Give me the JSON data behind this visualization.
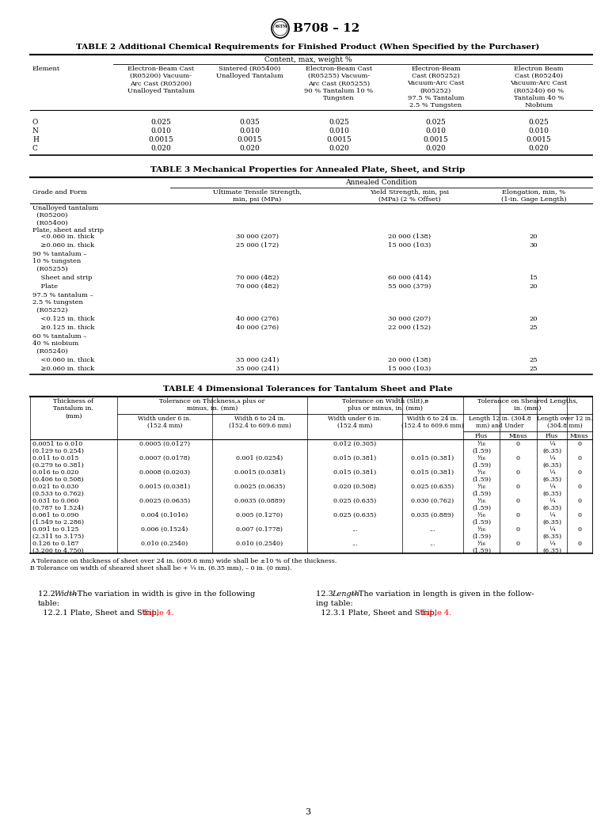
{
  "title": "B708 – 12",
  "bg_color": "#ffffff",
  "table2_title": "TABLE 2 Additional Chemical Requirements for Finished Product (When Specified by the Purchaser)",
  "table3_title": "TABLE 3 Mechanical Properties for Annealed Plate, Sheet, and Strip",
  "table4_title": "TABLE 4 Dimensional Tolerances for Tantalum Sheet and Plate",
  "table2_content_header": "Content, max, weight %",
  "table2_col_headers": [
    "Element",
    "Electron-Beam Cast\n(R05200) Vacuum-\nArc Cast (R05200)\nUnalloyed Tantalum",
    "Sintered (R05400)\nUnalloyed Tantalum",
    "Electron-Beam Cast\n(R05255) Vacuum-\nArc Cast (R05255)\n90 % Tantalum 10 %\nTungsten",
    "Electron-Beam\nCast (R05252)\nVacuum-Arc Cast\n(R05252)\n97.5 % Tantalum\n2.5 % Tungsten",
    "Electron Beam\nCast (R05240)\nVacuum-Arc Cast\n(R05240) 60 %\nTantalum 40 %\nNiobium"
  ],
  "table2_rows": [
    [
      "O",
      "0.025",
      "0.035",
      "0.025",
      "0.025",
      "0.025"
    ],
    [
      "N",
      "0.010",
      "0.010",
      "0.010",
      "0.010",
      "0.010"
    ],
    [
      "H",
      "0.0015",
      "0.0015",
      "0.0015",
      "0.0015",
      "0.0015"
    ],
    [
      "C",
      "0.020",
      "0.020",
      "0.020",
      "0.020",
      "0.020"
    ]
  ],
  "table3_annealed_header": "Annealed Condition",
  "table3_col_headers": [
    "Grade and Form",
    "Ultimate Tensile Strength,\nmin, psi (MPa)",
    "Yield Strength, min, psi\n(MPa) (2 % Offset)",
    "Elongation, min, %\n(1-in. Gage Length)"
  ],
  "table3_rows": [
    [
      "Unalloyed tantalum\n  (R05200)\n  (R05400)\nPlate, sheet and strip",
      "",
      "",
      ""
    ],
    [
      "    <0.060 in. thick",
      "30 000 (207)",
      "20 000 (138)",
      "20"
    ],
    [
      "    ≥0.060 in. thick",
      "25 000 (172)",
      "15 000 (103)",
      "30"
    ],
    [
      "90 % tantalum –\n10 % tungsten\n  (R05255)",
      "",
      "",
      ""
    ],
    [
      "    Sheet and strip",
      "70 000 (482)",
      "60 000 (414)",
      "15"
    ],
    [
      "    Plate",
      "70 000 (482)",
      "55 000 (379)",
      "20"
    ],
    [
      "97.5 % tantalum –\n2.5 % tungsten\n  (R05252)",
      "",
      "",
      ""
    ],
    [
      "    <0.125 in. thick",
      "40 000 (276)",
      "30 000 (207)",
      "20"
    ],
    [
      "    ≥0.125 in. thick",
      "40 000 (276)",
      "22 000 (152)",
      "25"
    ],
    [
      "60 % tantalum –\n40 % niobium\n  (R05240)",
      "",
      "",
      ""
    ],
    [
      "    <0.060 in. thick",
      "35 000 (241)",
      "20 000 (138)",
      "25"
    ],
    [
      "    ≥0.060 in. thick",
      "35 000 (241)",
      "15 000 (103)",
      "25"
    ]
  ],
  "table3_row_heights": [
    36,
    11,
    11,
    30,
    11,
    11,
    30,
    11,
    11,
    30,
    11,
    11
  ],
  "table4_rows": [
    [
      "0.0051 to 0.010\n(0.129 to 0.254)",
      "0.0005 (0.0127)",
      "",
      "0.012 (0.305)",
      "",
      "¹⁄₁₆\n(1.59)",
      "0",
      "¼\n(6.35)",
      "0"
    ],
    [
      "0.011 to 0.015\n(0.279 to 0.381)",
      "0.0007 (0.0178)",
      "0.001 (0.0254)",
      "0.015 (0.381)",
      "0.015 (0.381)",
      "¹⁄₁₆\n(1.59)",
      "0",
      "¼\n(6.35)",
      "0"
    ],
    [
      "0.016 to 0.020\n(0.406 to 0.508)",
      "0.0008 (0.0203)",
      "0.0015 (0.0381)",
      "0.015 (0.381)",
      "0.015 (0.381)",
      "¹⁄₁₆\n(1.59)",
      "0",
      "¼\n(6.35)",
      "0"
    ],
    [
      "0.021 to 0.030\n(0.533 to 0.762)",
      "0.0015 (0.0381)",
      "0.0025 (0.0635)",
      "0.020 (0.508)",
      "0.025 (0.635)",
      "¹⁄₁₆\n(1.59)",
      "0",
      "¼\n(6.35)",
      "0"
    ],
    [
      "0.031 to 0.060\n(0.787 to 1.524)",
      "0.0025 (0.0635)",
      "0.0035 (0.0889)",
      "0.025 (0.635)",
      "0.030 (0.762)",
      "¹⁄₁₆\n(1.59)",
      "0",
      "¼\n(6.35)",
      "0"
    ],
    [
      "0.061 to 0.090\n(1.549 to 2.286)",
      "0.004 (0.1016)",
      "0.005 (0.1270)",
      "0.025 (0.635)",
      "0.035 (0.889)",
      "¹⁄₁₆\n(1.59)",
      "0",
      "¼\n(6.35)",
      "0"
    ],
    [
      "0.091 to 0.125\n(2.311 to 3.175)",
      "0.006 (0.1524)",
      "0.007 (0.1778)",
      "...",
      "...",
      "¹⁄₁₆\n(1.59)",
      "0",
      "¼\n(6.35)",
      "0"
    ],
    [
      "0.126 to 0.187\n(3.200 to 4.750)",
      "0.010 (0.2540)",
      "0.010 (0.2540)",
      "...",
      "...",
      "¹⁄₁₆\n(1.59)",
      "0",
      "¼\n(6.35)",
      "0"
    ]
  ],
  "table4_footnote_A": "A Tolerance on thickness of sheet over 24 in. (609.6 mm) wide shall be ±10 % of the thickness.",
  "table4_footnote_B": "B Tolerance on width of sheared sheet shall be + ¼ in. (6.35 mm), – 0 in. (0 mm).",
  "bottom_left_1": "12.2 ",
  "bottom_left_italic": "Width",
  "bottom_left_2": "—The variation in width is give in the following",
  "bottom_left_3": "table:",
  "bottom_left_4": "  12.2.1 Plate, Sheet and Strip, ",
  "bottom_left_red": "Table 4.",
  "bottom_right_1": "12.3 ",
  "bottom_right_italic": "Length",
  "bottom_right_2": "—The variation in length is given in the follow-",
  "bottom_right_3": "ing table:",
  "bottom_right_4": "  12.3.1 Plate, Sheet and Strip, ",
  "bottom_right_red": "Table 4.",
  "page_num": "3"
}
